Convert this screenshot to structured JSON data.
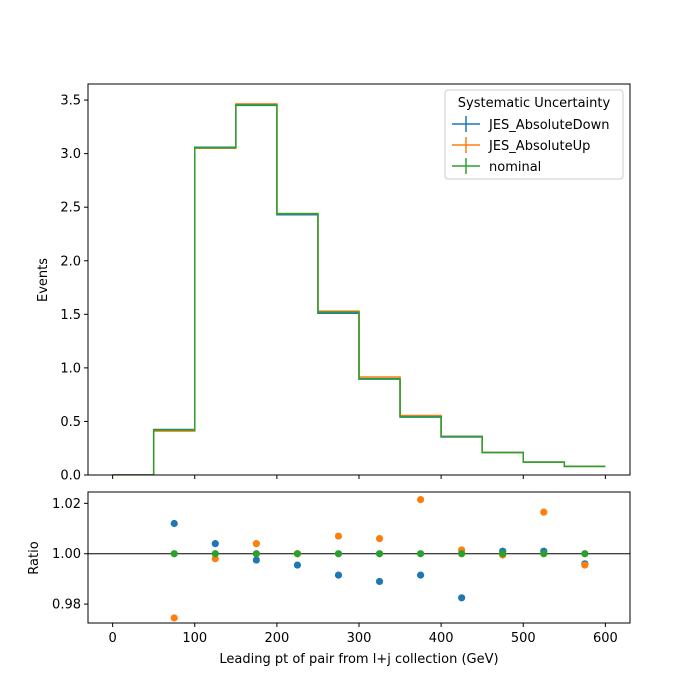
{
  "chart_data": [
    {
      "type": "line",
      "style": "step-histogram",
      "xlabel": "",
      "ylabel": "Events",
      "xlim": [
        -30,
        630
      ],
      "ylim": [
        0,
        3.65
      ],
      "xticks": [
        0,
        100,
        200,
        300,
        400,
        500,
        600
      ],
      "yticks": [
        "0.0",
        "0.5",
        "1.0",
        "1.5",
        "2.0",
        "2.5",
        "3.0",
        "3.5"
      ],
      "bin_edges": [
        0,
        50,
        100,
        150,
        200,
        250,
        300,
        350,
        400,
        450,
        500,
        550,
        600
      ],
      "legend": {
        "title": "Systematic Uncertainty",
        "placement": "upper right"
      },
      "series": [
        {
          "name": "JES_AbsoluteDown",
          "color": "#1f77b4",
          "values": [
            0.0,
            0.425,
            3.06,
            3.45,
            2.43,
            1.51,
            0.895,
            0.54,
            0.355,
            0.21,
            0.12,
            0.08
          ]
        },
        {
          "name": "JES_AbsoluteUp",
          "color": "#ff7f0e",
          "values": [
            0.0,
            0.41,
            3.05,
            3.465,
            2.44,
            1.53,
            0.915,
            0.555,
            0.36,
            0.21,
            0.12,
            0.08
          ]
        },
        {
          "name": "nominal",
          "color": "#2ca02c",
          "values": [
            0.0,
            0.42,
            3.055,
            3.455,
            2.44,
            1.52,
            0.9,
            0.545,
            0.36,
            0.21,
            0.12,
            0.08
          ]
        }
      ]
    },
    {
      "type": "scatter",
      "xlabel": "Leading pt of pair from l+j collection (GeV)",
      "ylabel": "Ratio",
      "xlim": [
        -30,
        630
      ],
      "ylim": [
        0.9725,
        1.0245
      ],
      "xticks": [
        0,
        100,
        200,
        300,
        400,
        500,
        600
      ],
      "yticks": [
        "0.98",
        "1.00",
        "1.02"
      ],
      "reference_line": 1.0,
      "x": [
        75,
        125,
        175,
        225,
        275,
        325,
        375,
        425,
        475,
        525,
        575
      ],
      "series": [
        {
          "name": "JES_AbsoluteDown",
          "color": "#1f77b4",
          "values": [
            1.012,
            1.004,
            0.9975,
            0.9955,
            0.9915,
            0.989,
            0.9915,
            0.9825,
            1.001,
            1.001,
            0.996
          ]
        },
        {
          "name": "JES_AbsoluteUp",
          "color": "#ff7f0e",
          "values": [
            0.9745,
            0.998,
            1.004,
            1.0,
            1.007,
            1.006,
            1.0215,
            1.0015,
            0.9995,
            1.0165,
            0.9955
          ]
        },
        {
          "name": "nominal",
          "color": "#2ca02c",
          "values": [
            1.0,
            1.0,
            1.0,
            1.0,
            1.0,
            1.0,
            1.0,
            1.0,
            1.0,
            1.0,
            1.0
          ]
        }
      ]
    }
  ]
}
